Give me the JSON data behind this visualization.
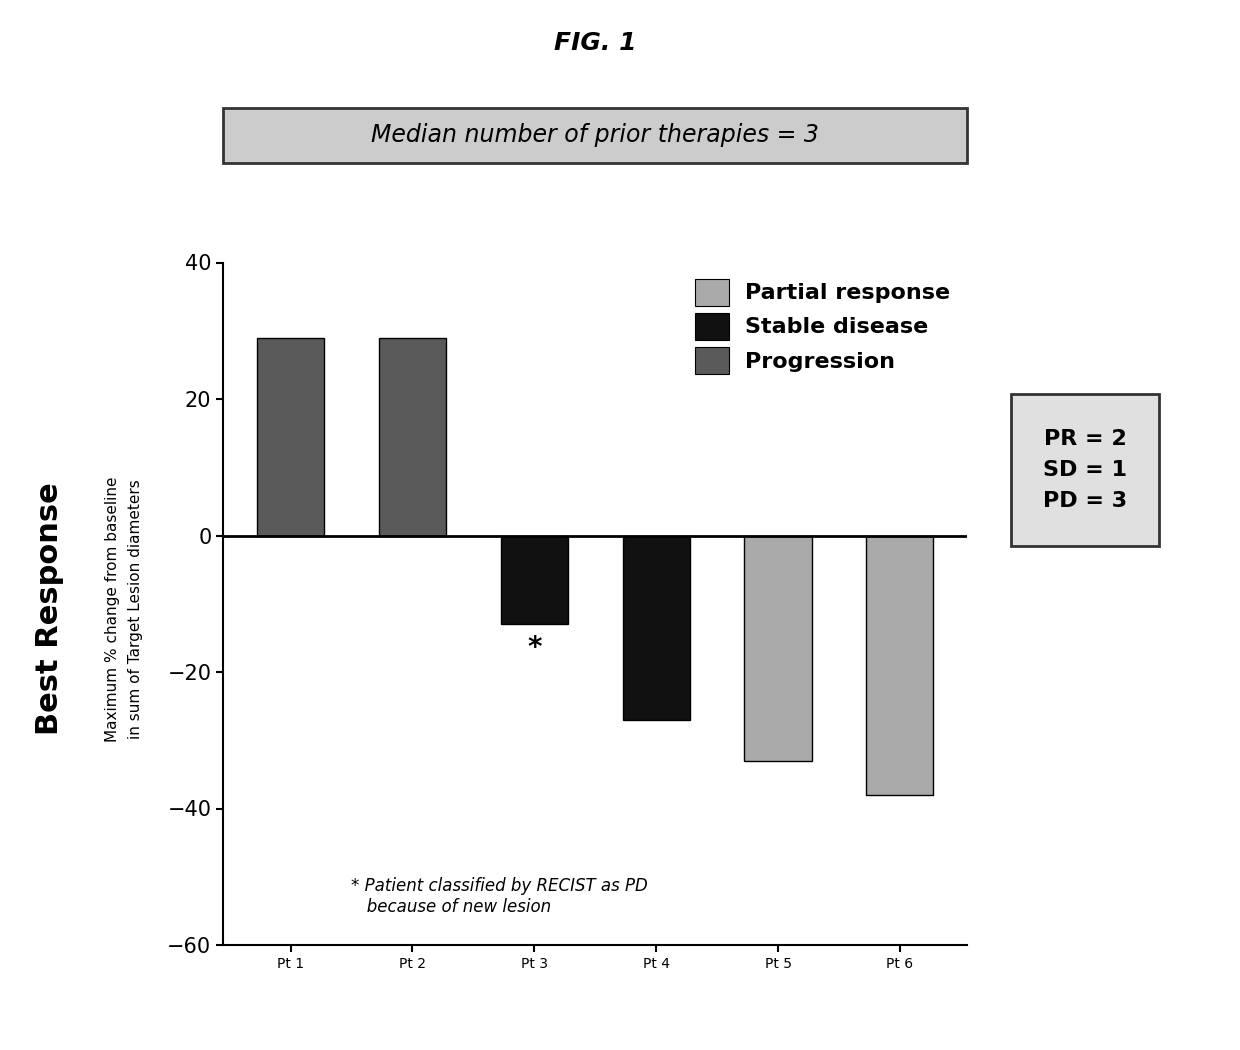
{
  "title": "FIG. 1",
  "subtitle": "Median number of prior therapies = 3",
  "categories": [
    "Pt 1",
    "Pt 2",
    "Pt 3",
    "Pt 4",
    "Pt 5",
    "Pt 6"
  ],
  "values": [
    29,
    29,
    -13,
    -27,
    -33,
    -38
  ],
  "bar_colors": [
    "#5a5a5a",
    "#5a5a5a",
    "#111111",
    "#111111",
    "#aaaaaa",
    "#aaaaaa"
  ],
  "ylabel_line1": "Best Response",
  "ylabel_line2": "Maximum % change from baseline",
  "ylabel_line3": "in sum of Target Lesion diameters",
  "ylim": [
    -60,
    40
  ],
  "yticks": [
    -60,
    -40,
    -20,
    0,
    20,
    40
  ],
  "legend_labels": [
    "Partial response",
    "Stable disease",
    "Progression"
  ],
  "legend_colors": [
    "#aaaaaa",
    "#111111",
    "#5a5a5a"
  ],
  "annotation_star": "*",
  "annotation_text": " Patient classified by RECIST as PD\n   because of new lesion",
  "star_patient_idx": 2,
  "pr_count": 2,
  "sd_count": 1,
  "pd_count": 3,
  "background_color": "#ffffff",
  "bar_edge_color": "#000000",
  "figsize": [
    12.4,
    10.5
  ],
  "dpi": 100
}
